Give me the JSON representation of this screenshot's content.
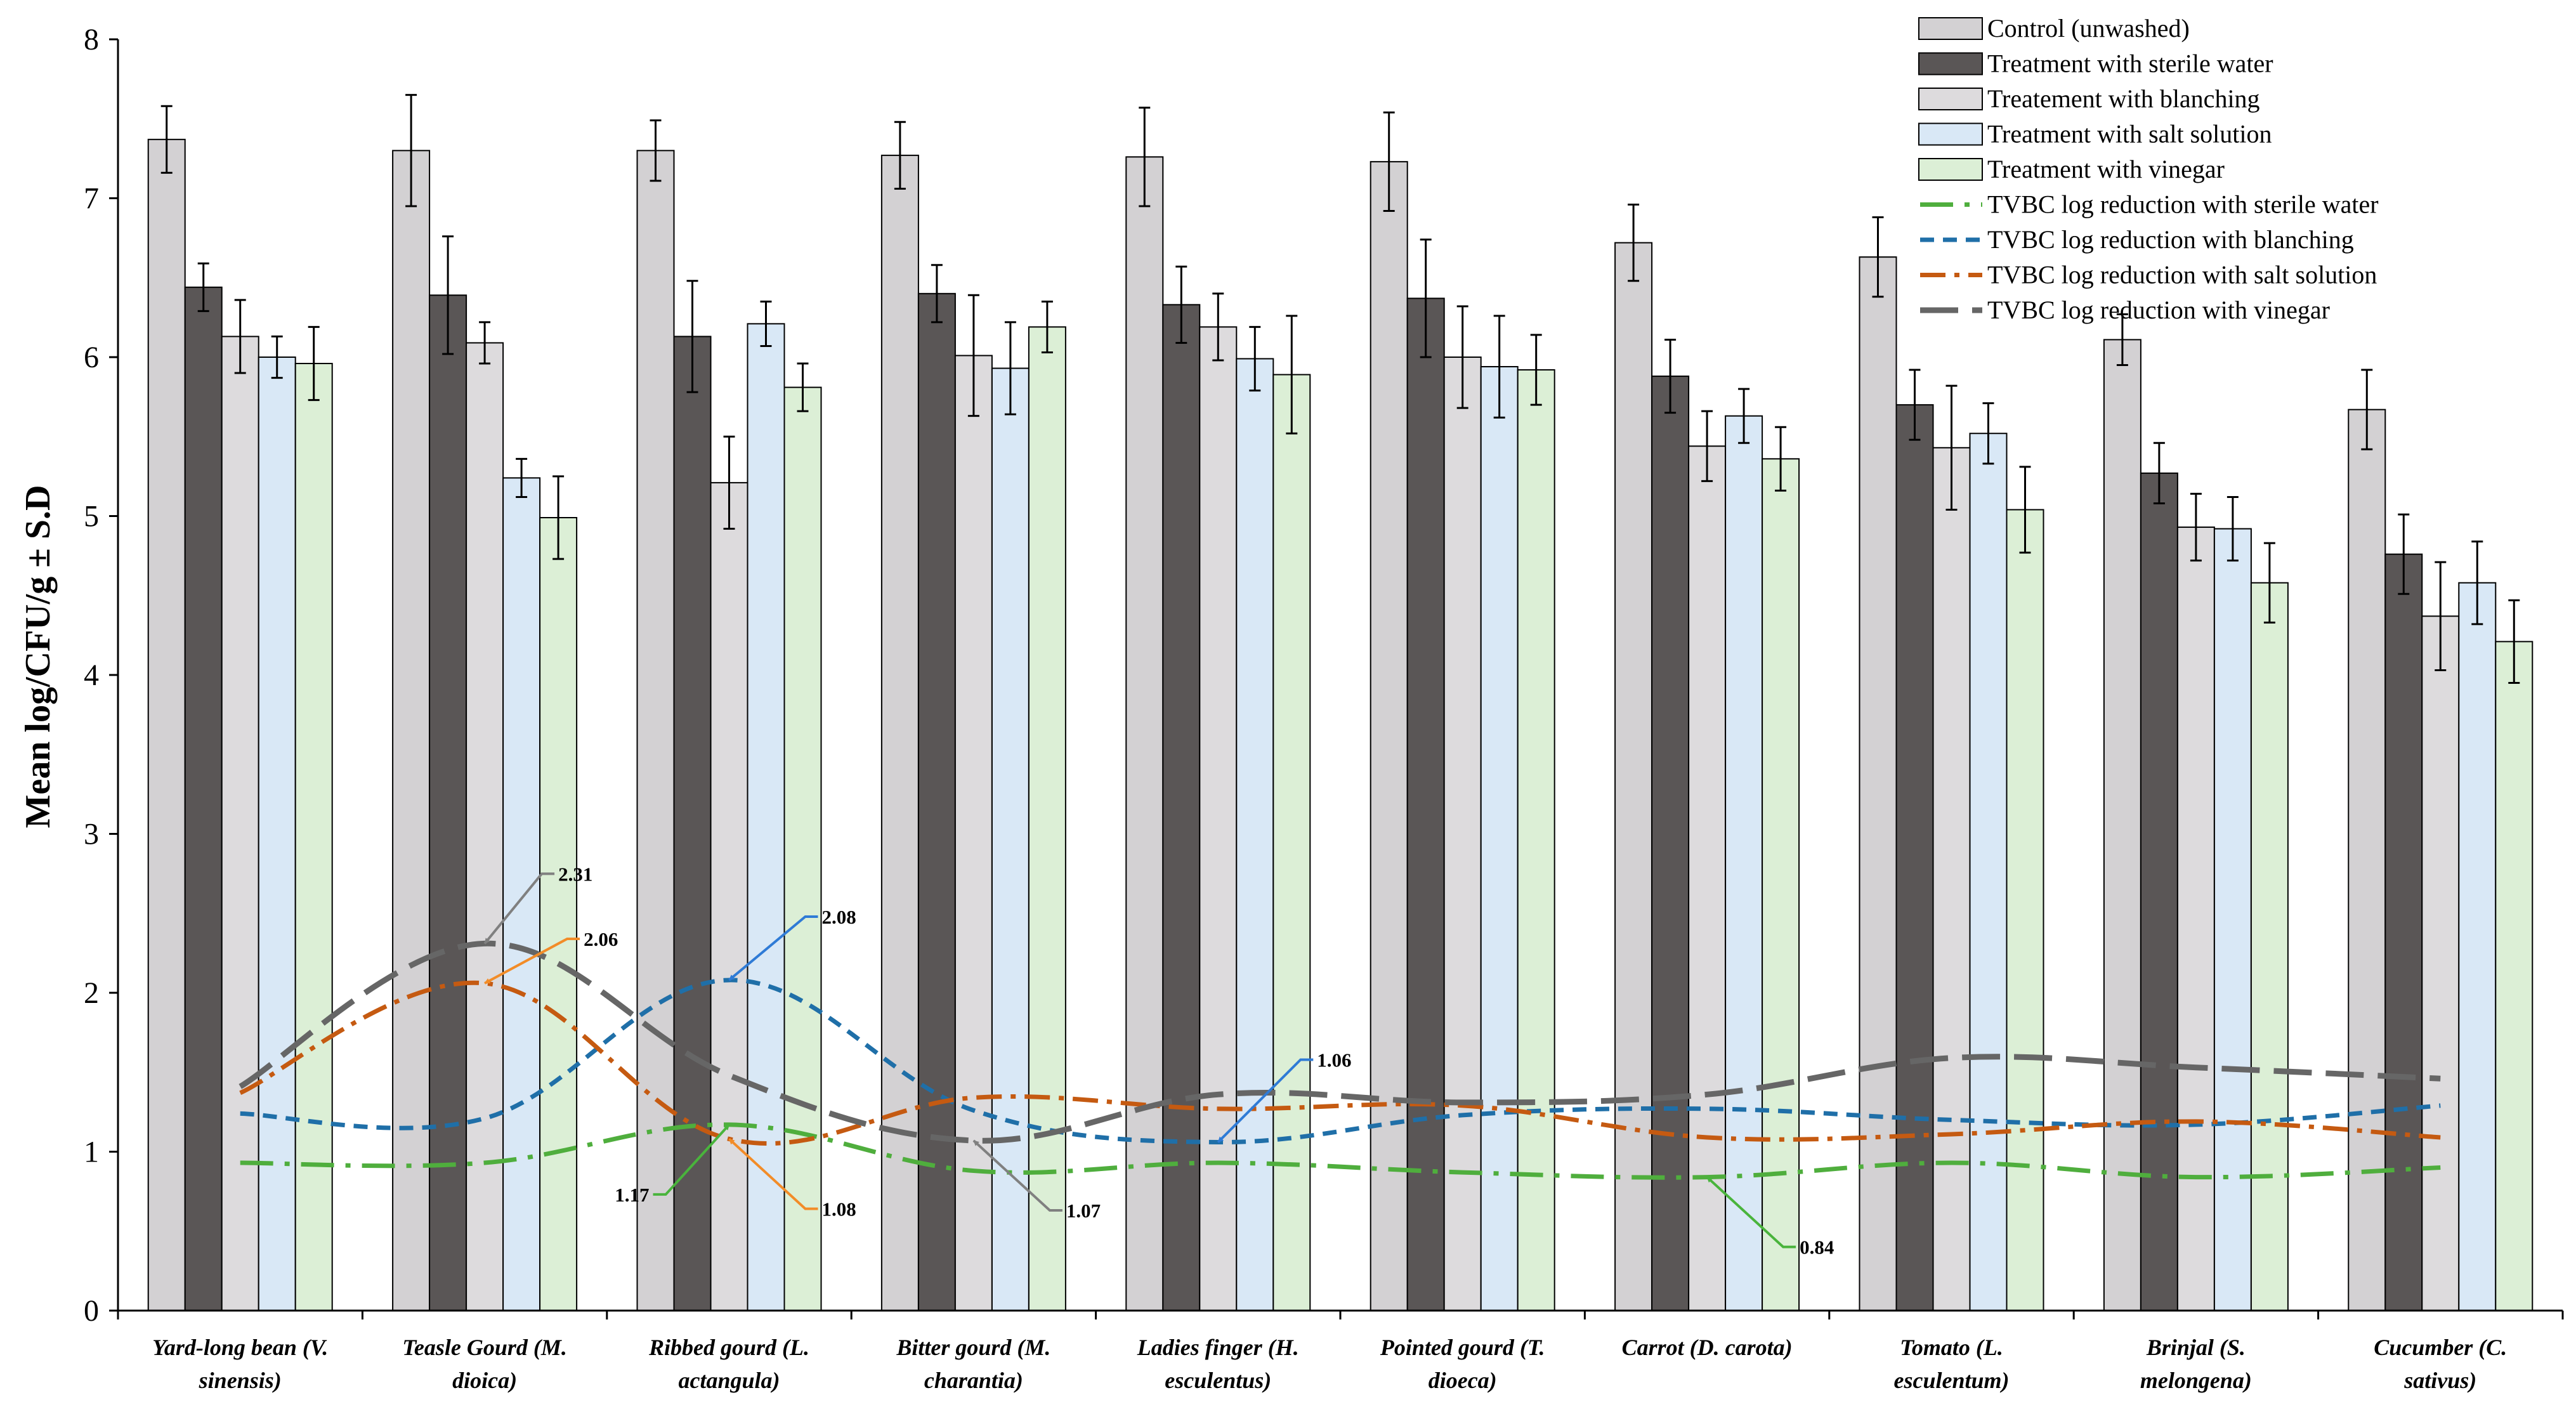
{
  "chart_data": {
    "type": "bar",
    "ylabel": "Mean log/CFU/g ± S.D",
    "xlabel": "",
    "ylim": [
      0,
      8
    ],
    "yticks": [
      "0",
      "1",
      "2",
      "3",
      "4",
      "5",
      "6",
      "7",
      "8"
    ],
    "grid": false,
    "legend_position": "top-right",
    "categories": [
      [
        "Yard-long bean (V.",
        "sinensis)"
      ],
      [
        "Teasle Gourd (M.",
        "dioica)"
      ],
      [
        "Ribbed gourd (L.",
        "actangula)"
      ],
      [
        "Bitter gourd (M.",
        "charantia)"
      ],
      [
        "Ladies finger (H.",
        "esculentus)"
      ],
      [
        "Pointed gourd (T.",
        "dioeca)"
      ],
      [
        "Carrot (D. carota)"
      ],
      [
        "Tomato (L.",
        "esculentum)"
      ],
      [
        "Brinjal (S.",
        "melongena)"
      ],
      [
        "Cucumber (C.",
        "sativus)"
      ]
    ],
    "series": [
      {
        "name": "Control (unwashed)",
        "color": "#d3d1d3",
        "values": [
          7.37,
          7.3,
          7.3,
          7.27,
          7.26,
          7.23,
          6.72,
          6.63,
          6.11,
          5.67
        ],
        "errors": [
          0.21,
          0.35,
          0.19,
          0.21,
          0.31,
          0.31,
          0.24,
          0.25,
          0.16,
          0.25
        ]
      },
      {
        "name": "Treatment with sterile water",
        "color": "#5a5656",
        "values": [
          6.44,
          6.39,
          6.13,
          6.4,
          6.33,
          6.37,
          5.88,
          5.7,
          5.27,
          4.76
        ],
        "errors": [
          0.15,
          0.37,
          0.35,
          0.18,
          0.24,
          0.37,
          0.23,
          0.22,
          0.19,
          0.25
        ]
      },
      {
        "name": "Treatement with blanching",
        "color": "#dddbdd",
        "values": [
          6.13,
          6.09,
          5.21,
          6.01,
          6.19,
          6.0,
          5.44,
          5.43,
          4.93,
          4.37
        ],
        "errors": [
          0.23,
          0.13,
          0.29,
          0.38,
          0.21,
          0.32,
          0.22,
          0.39,
          0.21,
          0.34
        ]
      },
      {
        "name": "Treatment with salt solution",
        "color": "#d9e8f6",
        "values": [
          6.0,
          5.24,
          6.21,
          5.93,
          5.99,
          5.94,
          5.63,
          5.52,
          4.92,
          4.58
        ],
        "errors": [
          0.13,
          0.12,
          0.14,
          0.29,
          0.2,
          0.32,
          0.17,
          0.19,
          0.2,
          0.26
        ]
      },
      {
        "name": "Treatment with vinegar",
        "color": "#dcefd6",
        "values": [
          5.96,
          4.99,
          5.81,
          6.19,
          5.89,
          5.92,
          5.36,
          5.04,
          4.58,
          4.21
        ],
        "errors": [
          0.23,
          0.26,
          0.15,
          0.16,
          0.37,
          0.22,
          0.2,
          0.27,
          0.25,
          0.26
        ]
      }
    ],
    "lines": [
      {
        "name": "TVBC log reduction with sterile water",
        "color": "#4fae3d",
        "dash": "52,18,8,18",
        "values": [
          0.93,
          0.93,
          1.17,
          0.88,
          0.93,
          0.87,
          0.84,
          0.93,
          0.84,
          0.9
        ]
      },
      {
        "name": "TVBC log reduction with blanching",
        "color": "#1f6fa8",
        "dash": "22,14",
        "values": [
          1.24,
          1.21,
          2.08,
          1.26,
          1.06,
          1.23,
          1.27,
          1.2,
          1.17,
          1.29
        ]
      },
      {
        "name": "TVBC log reduction with salt solution",
        "color": "#c55a11",
        "dash": "40,14,8,14",
        "values": [
          1.37,
          2.06,
          1.08,
          1.34,
          1.27,
          1.29,
          1.09,
          1.11,
          1.19,
          1.09
        ]
      },
      {
        "name": "TVBC log reduction with vinegar",
        "color": "#666666",
        "dash": "60,22",
        "values": [
          1.41,
          2.31,
          1.48,
          1.07,
          1.36,
          1.31,
          1.36,
          1.59,
          1.53,
          1.46
        ]
      }
    ],
    "annotations": [
      {
        "text": "2.31",
        "line": 3,
        "index": 1,
        "color": "#808080"
      },
      {
        "text": "2.06",
        "line": 2,
        "index": 1,
        "color": "#f28c28"
      },
      {
        "text": "2.08",
        "line": 1,
        "index": 2,
        "color": "#2f7bd6"
      },
      {
        "text": "1.17",
        "line": 0,
        "index": 2,
        "color": "#49b43c"
      },
      {
        "text": "1.08",
        "line": 2,
        "index": 2,
        "color": "#f28c28"
      },
      {
        "text": "1.07",
        "line": 3,
        "index": 3,
        "color": "#808080"
      },
      {
        "text": "1.06",
        "line": 1,
        "index": 4,
        "color": "#2f7bd6"
      },
      {
        "text": "0.84",
        "line": 0,
        "index": 6,
        "color": "#49b43c"
      }
    ]
  }
}
